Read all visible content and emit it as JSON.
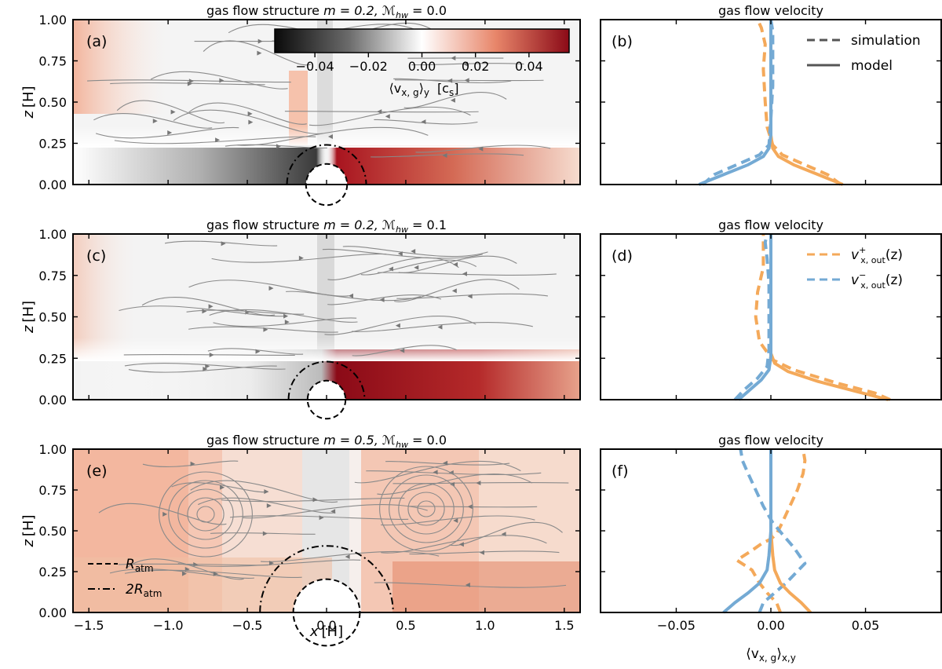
{
  "chart_data": {
    "type": "multi-panel figure",
    "colorbar": {
      "ticks": [
        "−0.04",
        "−0.02",
        "0.00",
        "0.02",
        "0.04"
      ],
      "tick_values": [
        -0.04,
        -0.02,
        0.0,
        0.02,
        0.04
      ],
      "range": [
        -0.055,
        0.055
      ],
      "label": "⟨v",
      "label_sub": "x, g",
      "label_after": "⟩",
      "label_sub2": "y",
      "units": "[c",
      "units_sub": "s",
      "units_after": "]",
      "colors": {
        "negative": "#111111",
        "zero": "#ffffff",
        "positive": "#8b0a17",
        "mid_positive": "#e8866a"
      }
    },
    "flow_panels": [
      {
        "letter": "(a)",
        "title_prefix": "gas flow structure  ",
        "title_m": "m = 0.2,  ",
        "title_mach_symbol": "ℳ",
        "title_mach_sub": "hw",
        "title_mach_val": " = 0.0",
        "R_atm": 0.13,
        "two_R_atm": 0.25,
        "x_range": [
          -1.6,
          1.6
        ],
        "z_range": [
          0,
          1
        ],
        "yticks": [
          "0.00",
          "0.25",
          "0.50",
          "0.75",
          "1.00"
        ]
      },
      {
        "letter": "(c)",
        "title_prefix": "gas flow structure  ",
        "title_m": "m = 0.2,  ",
        "title_mach_symbol": "ℳ",
        "title_mach_sub": "hw",
        "title_mach_val": " = 0.1",
        "R_atm": 0.12,
        "two_R_atm": 0.24,
        "x_range": [
          -1.6,
          1.6
        ],
        "z_range": [
          0,
          1
        ],
        "yticks": [
          "0.00",
          "0.25",
          "0.50",
          "0.75",
          "1.00"
        ]
      },
      {
        "letter": "(e)",
        "title_prefix": "gas flow structure  ",
        "title_m": "m = 0.5,  ",
        "title_mach_symbol": "ℳ",
        "title_mach_sub": "hw",
        "title_mach_val": " = 0.0",
        "R_atm": 0.21,
        "two_R_atm": 0.42,
        "x_range": [
          -1.6,
          1.6
        ],
        "z_range": [
          0,
          1
        ],
        "yticks": [
          "0.00",
          "0.25",
          "0.50",
          "0.75",
          "1.00"
        ],
        "xticks": [
          "−1.5",
          "−1.0",
          "−0.5",
          "0.0",
          "0.5",
          "1.0",
          "1.5"
        ],
        "xtick_values": [
          -1.5,
          -1.0,
          -0.5,
          0.0,
          0.5,
          1.0,
          1.5
        ]
      }
    ],
    "flow_ylabel": {
      "z": "z",
      "unit": "[H]"
    },
    "flow_xlabel": {
      "x": "x",
      "unit": "[H]"
    },
    "radius_legend": {
      "dashed": "R",
      "dashed_sub": "atm",
      "dashdot": "2R",
      "dashdot_sub": "atm"
    },
    "velocity_panels": [
      {
        "letter": "(b)",
        "title": "gas flow velocity",
        "series": [
          {
            "name": "v+ simulation",
            "color": "#f4a95a",
            "style": "dashed",
            "points": [
              [
                0.037,
                0.0
              ],
              [
                0.03,
                0.06
              ],
              [
                0.018,
                0.12
              ],
              [
                0.006,
                0.18
              ],
              [
                0.001,
                0.24
              ],
              [
                -0.002,
                0.35
              ],
              [
                -0.003,
                0.5
              ],
              [
                -0.004,
                0.7
              ],
              [
                -0.003,
                0.85
              ],
              [
                -0.005,
                0.95
              ],
              [
                -0.007,
                1.0
              ]
            ]
          },
          {
            "name": "v- simulation",
            "color": "#74aad4",
            "style": "dashed",
            "points": [
              [
                -0.036,
                0.0
              ],
              [
                -0.03,
                0.06
              ],
              [
                -0.018,
                0.12
              ],
              [
                -0.006,
                0.18
              ],
              [
                -0.001,
                0.24
              ],
              [
                0.0,
                0.4
              ],
              [
                0.001,
                0.6
              ],
              [
                0.001,
                0.8
              ],
              [
                0.001,
                0.93
              ],
              [
                0.0,
                1.0
              ]
            ]
          },
          {
            "name": "v+ model",
            "color": "#f4a95a",
            "style": "solid",
            "points": [
              [
                0.038,
                0.0
              ],
              [
                0.025,
                0.06
              ],
              [
                0.012,
                0.12
              ],
              [
                0.004,
                0.17
              ],
              [
                0.001,
                0.22
              ],
              [
                0.0,
                0.3
              ],
              [
                0.0,
                1.0
              ]
            ]
          },
          {
            "name": "v- model",
            "color": "#74aad4",
            "style": "solid",
            "points": [
              [
                -0.038,
                0.0
              ],
              [
                -0.025,
                0.06
              ],
              [
                -0.012,
                0.12
              ],
              [
                -0.004,
                0.17
              ],
              [
                -0.001,
                0.22
              ],
              [
                0.0,
                0.3
              ],
              [
                0.0,
                1.0
              ]
            ]
          }
        ],
        "legend": {
          "items": [
            {
              "label": "simulation",
              "style": "dashed",
              "color": "#555555"
            },
            {
              "label": "model",
              "style": "solid",
              "color": "#555555"
            }
          ]
        }
      },
      {
        "letter": "(d)",
        "title": "gas flow velocity",
        "series": [
          {
            "name": "v+ simulation",
            "color": "#f4a95a",
            "style": "dashed",
            "points": [
              [
                0.063,
                0.0
              ],
              [
                0.055,
                0.04
              ],
              [
                0.035,
                0.1
              ],
              [
                0.012,
                0.18
              ],
              [
                0.001,
                0.24
              ],
              [
                -0.006,
                0.35
              ],
              [
                -0.008,
                0.5
              ],
              [
                -0.007,
                0.65
              ],
              [
                -0.004,
                0.8
              ],
              [
                -0.004,
                1.0
              ]
            ]
          },
          {
            "name": "v- simulation",
            "color": "#74aad4",
            "style": "dashed",
            "points": [
              [
                -0.019,
                0.0
              ],
              [
                -0.014,
                0.06
              ],
              [
                -0.007,
                0.13
              ],
              [
                -0.002,
                0.2
              ],
              [
                -0.001,
                0.3
              ],
              [
                -0.001,
                0.5
              ],
              [
                -0.001,
                0.7
              ],
              [
                -0.002,
                0.85
              ],
              [
                -0.003,
                0.95
              ],
              [
                -0.002,
                1.0
              ]
            ]
          },
          {
            "name": "v+ model",
            "color": "#f4a95a",
            "style": "solid",
            "points": [
              [
                0.062,
                0.0
              ],
              [
                0.045,
                0.05
              ],
              [
                0.025,
                0.11
              ],
              [
                0.009,
                0.17
              ],
              [
                0.002,
                0.22
              ],
              [
                0.0,
                0.28
              ],
              [
                0.0,
                1.0
              ]
            ]
          },
          {
            "name": "v- model",
            "color": "#74aad4",
            "style": "solid",
            "points": [
              [
                -0.017,
                0.0
              ],
              [
                -0.011,
                0.06
              ],
              [
                -0.005,
                0.12
              ],
              [
                -0.001,
                0.18
              ],
              [
                0.0,
                0.26
              ],
              [
                0.0,
                1.0
              ]
            ]
          }
        ],
        "legend": {
          "items": [
            {
              "label": "v",
              "sub": "x, out",
              "sup": "+",
              "tail": "(z)",
              "style": "dashed",
              "color": "#f4a95a"
            },
            {
              "label": "v",
              "sub": "x, out",
              "sup": "−",
              "tail": "(z)",
              "style": "dashed",
              "color": "#74aad4"
            }
          ]
        }
      },
      {
        "letter": "(f)",
        "title": "gas flow velocity",
        "series": [
          {
            "name": "v+ simulation",
            "color": "#f4a95a",
            "style": "dashed",
            "points": [
              [
                0.005,
                0.0
              ],
              [
                0.003,
                0.06
              ],
              [
                -0.002,
                0.12
              ],
              [
                -0.006,
                0.18
              ],
              [
                -0.008,
                0.22
              ],
              [
                -0.01,
                0.26
              ],
              [
                -0.018,
                0.32
              ],
              [
                -0.01,
                0.38
              ],
              [
                -0.005,
                0.42
              ],
              [
                0.0,
                0.45
              ],
              [
                0.003,
                0.48
              ],
              [
                0.006,
                0.55
              ],
              [
                0.01,
                0.65
              ],
              [
                0.014,
                0.75
              ],
              [
                0.017,
                0.85
              ],
              [
                0.018,
                0.93
              ],
              [
                0.017,
                1.0
              ]
            ]
          },
          {
            "name": "v- simulation",
            "color": "#74aad4",
            "style": "dashed",
            "points": [
              [
                -0.006,
                0.0
              ],
              [
                -0.004,
                0.06
              ],
              [
                0.002,
                0.12
              ],
              [
                0.008,
                0.18
              ],
              [
                0.013,
                0.24
              ],
              [
                0.018,
                0.3
              ],
              [
                0.012,
                0.4
              ],
              [
                0.006,
                0.48
              ],
              [
                0.001,
                0.55
              ],
              [
                -0.004,
                0.65
              ],
              [
                -0.008,
                0.75
              ],
              [
                -0.012,
                0.85
              ],
              [
                -0.015,
                0.93
              ],
              [
                -0.016,
                1.0
              ]
            ]
          },
          {
            "name": "v+ model",
            "color": "#f4a95a",
            "style": "solid",
            "points": [
              [
                0.021,
                0.0
              ],
              [
                0.016,
                0.06
              ],
              [
                0.01,
                0.12
              ],
              [
                0.005,
                0.18
              ],
              [
                0.002,
                0.26
              ],
              [
                0.001,
                0.35
              ],
              [
                0.0,
                0.5
              ],
              [
                0.0,
                1.0
              ]
            ]
          },
          {
            "name": "v- model",
            "color": "#74aad4",
            "style": "solid",
            "points": [
              [
                -0.025,
                0.0
              ],
              [
                -0.019,
                0.06
              ],
              [
                -0.012,
                0.12
              ],
              [
                -0.006,
                0.18
              ],
              [
                -0.002,
                0.26
              ],
              [
                -0.001,
                0.35
              ],
              [
                0.0,
                0.5
              ],
              [
                0.0,
                1.0
              ]
            ]
          }
        ],
        "xticks": [
          "−0.05",
          "0.00",
          "0.05"
        ],
        "xtick_values": [
          -0.05,
          0.0,
          0.05
        ]
      }
    ],
    "velocity_x_range": [
      -0.09,
      0.09
    ],
    "velocity_xlabel": {
      "main": "⟨v",
      "sub": "x, g",
      "after": "⟩",
      "sub2": "x,y"
    }
  }
}
